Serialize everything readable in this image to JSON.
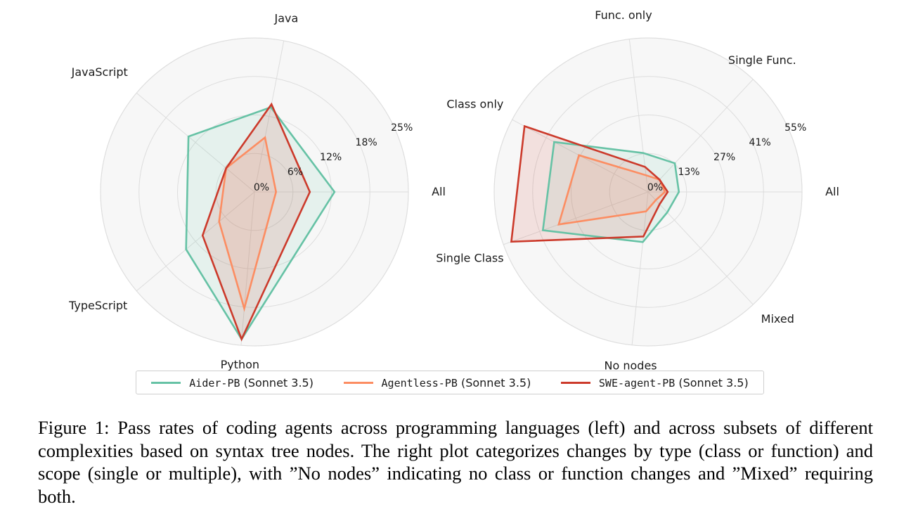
{
  "chart_data": [
    {
      "type": "radar",
      "axes": [
        "All",
        "Java",
        "JavaScript",
        "TypeScript",
        "Python"
      ],
      "radial_ticks": [
        "0%",
        "6%",
        "12%",
        "18%",
        "25%"
      ],
      "rmax": 25,
      "series": [
        {
          "name": "Aider-PB (Sonnet 3.5)",
          "values": [
            13,
            14,
            14,
            14.5,
            24
          ]
        },
        {
          "name": "Agentless-PB (Sonnet 3.5)",
          "values": [
            3.5,
            9,
            6,
            7.5,
            19
          ]
        },
        {
          "name": "SWE-agent-PB (Sonnet 3.5)",
          "values": [
            9,
            14.5,
            6,
            11,
            24
          ]
        }
      ]
    },
    {
      "type": "radar",
      "axes": [
        "All",
        "Single Func.",
        "Func. only",
        "Class only",
        "Single Class",
        "No nodes",
        "Mixed"
      ],
      "radial_ticks": [
        "0%",
        "13%",
        "27%",
        "41%",
        "55%"
      ],
      "rmax": 55,
      "series": [
        {
          "name": "Aider-PB (Sonnet 3.5)",
          "values": [
            11,
            14,
            14,
            38,
            40,
            18,
            10
          ]
        },
        {
          "name": "Agentless-PB (Sonnet 3.5)",
          "values": [
            6,
            6,
            6,
            28,
            34,
            7,
            4
          ]
        },
        {
          "name": "SWE-agent-PB (Sonnet 3.5)",
          "values": [
            7,
            6,
            9,
            50,
            52,
            16,
            6
          ]
        }
      ]
    }
  ],
  "colors": {
    "aider": "#66c2a5",
    "agentless": "#fc8d62",
    "sweagent": "#cc3a2b"
  },
  "legend": [
    {
      "mono": "Aider-PB",
      "rest": " (Sonnet 3.5)"
    },
    {
      "mono": "Agentless-PB",
      "rest": " (Sonnet 3.5)"
    },
    {
      "mono": "SWE-agent-PB",
      "rest": " (Sonnet 3.5)"
    }
  ],
  "caption": "Figure 1: Pass rates of coding agents across programming languages (left) and across subsets of different complexities based on syntax tree nodes. The right plot categorizes changes by type (class or function) and scope (single or multiple), with ”No nodes” indicating no class or function changes and ”Mixed” requiring both."
}
